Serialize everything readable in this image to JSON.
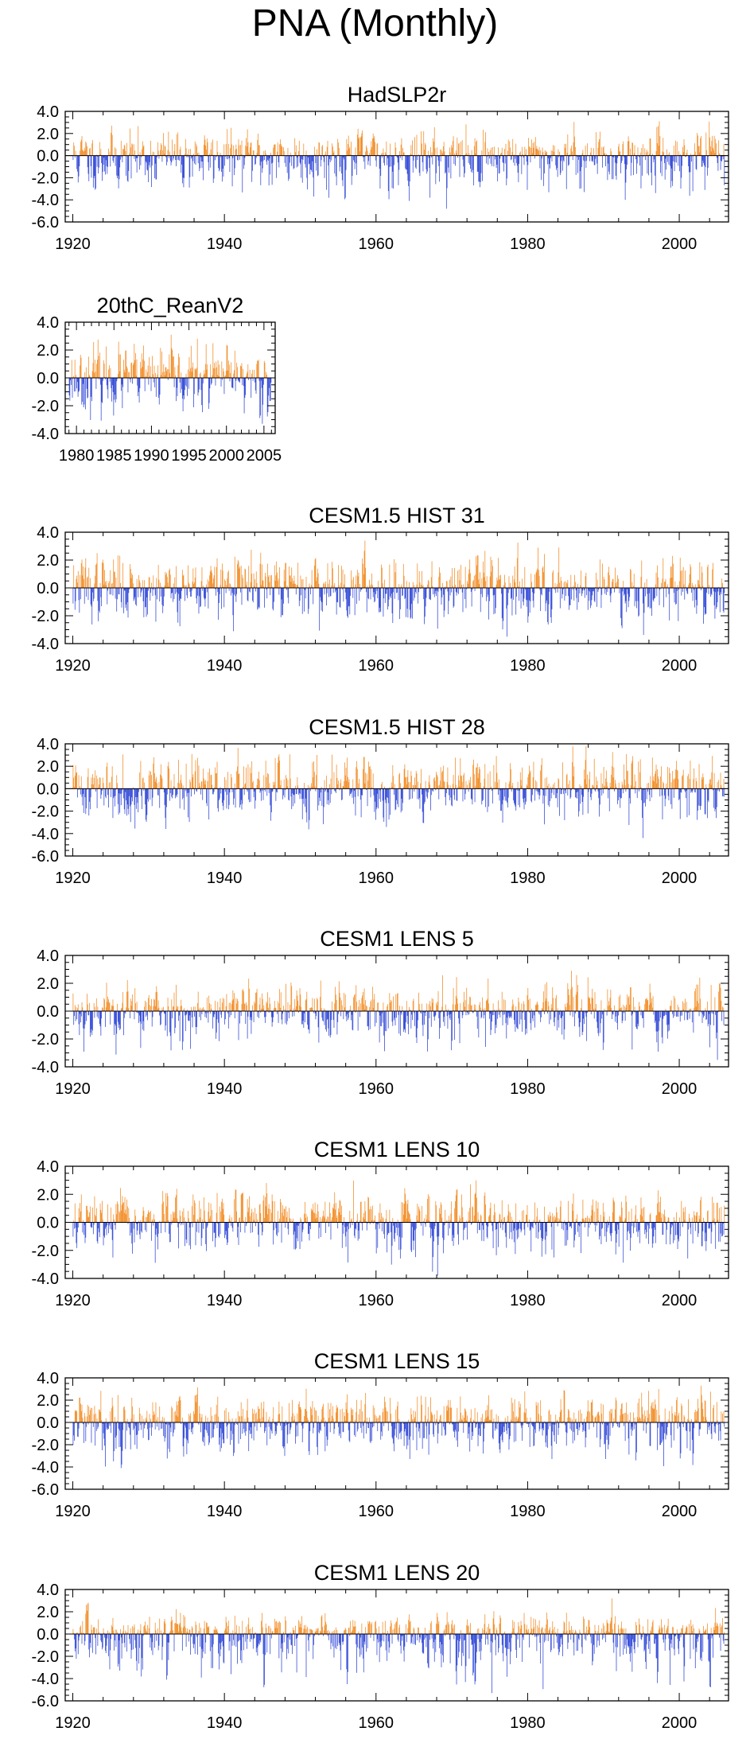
{
  "title": "PNA (Monthly)",
  "colors": {
    "positive": "#f28a21",
    "negative": "#2d45d6",
    "axis": "#000000",
    "zero_line": "#000000"
  },
  "chart_data": [
    {
      "type": "bar",
      "title": "HadSLP2r",
      "x_start": 1920,
      "x_end": 2006,
      "xlim": [
        1919,
        2006.5
      ],
      "xticks": [
        1920,
        1940,
        1960,
        1980,
        2000
      ],
      "xtick_labels": [
        "1920",
        "1940",
        "1960",
        "1980",
        "2000"
      ],
      "ylim": [
        -6,
        4
      ],
      "yticks": [
        4,
        2,
        0,
        -2,
        -4,
        -6
      ],
      "ytick_labels": [
        "4.0",
        "2.0",
        "0.0",
        "-2.0",
        "-4.0",
        "-6.0"
      ],
      "xlabel": "",
      "ylabel": "",
      "series_summary": {
        "max": 3.1,
        "min": -4.8,
        "seed": 11
      }
    },
    {
      "type": "bar",
      "title": "20thC_ReanV2",
      "x_start": 1979,
      "x_end": 2006,
      "xlim": [
        1978.5,
        2006.5
      ],
      "xticks": [
        1980,
        1985,
        1990,
        1995,
        2000,
        2005
      ],
      "xtick_labels": [
        "1980",
        "1985",
        "1990",
        "1995",
        "2000",
        "2005"
      ],
      "ylim": [
        -4,
        4
      ],
      "yticks": [
        4,
        2,
        0,
        -2,
        -4
      ],
      "ytick_labels": [
        "4.0",
        "2.0",
        "0.0",
        "-2.0",
        "-4.0"
      ],
      "xlabel": "",
      "ylabel": "",
      "series_summary": {
        "max": 3.1,
        "min": -3.3,
        "seed": 23
      }
    },
    {
      "type": "bar",
      "title": "CESM1.5 HIST 31",
      "x_start": 1920,
      "x_end": 2006,
      "xlim": [
        1919,
        2006.5
      ],
      "xticks": [
        1920,
        1940,
        1960,
        1980,
        2000
      ],
      "xtick_labels": [
        "1920",
        "1940",
        "1960",
        "1980",
        "2000"
      ],
      "ylim": [
        -4,
        4
      ],
      "yticks": [
        4,
        2,
        0,
        -2,
        -4
      ],
      "ytick_labels": [
        "4.0",
        "2.0",
        "0.0",
        "-2.0",
        "-4.0"
      ],
      "xlabel": "",
      "ylabel": "",
      "series_summary": {
        "max": 3.4,
        "min": -3.5,
        "seed": 37
      }
    },
    {
      "type": "bar",
      "title": "CESM1.5 HIST 28",
      "x_start": 1920,
      "x_end": 2006,
      "xlim": [
        1919,
        2006.5
      ],
      "xticks": [
        1920,
        1940,
        1960,
        1980,
        2000
      ],
      "xtick_labels": [
        "1920",
        "1940",
        "1960",
        "1980",
        "2000"
      ],
      "ylim": [
        -6,
        4
      ],
      "yticks": [
        4,
        2,
        0,
        -2,
        -4,
        -6
      ],
      "ytick_labels": [
        "4.0",
        "2.0",
        "0.0",
        "-2.0",
        "-4.0",
        "-6.0"
      ],
      "xlabel": "",
      "ylabel": "",
      "series_summary": {
        "max": 3.8,
        "min": -4.4,
        "seed": 41
      }
    },
    {
      "type": "bar",
      "title": "CESM1 LENS 5",
      "x_start": 1920,
      "x_end": 2006,
      "xlim": [
        1919,
        2006.5
      ],
      "xticks": [
        1920,
        1940,
        1960,
        1980,
        2000
      ],
      "xtick_labels": [
        "1920",
        "1940",
        "1960",
        "1980",
        "2000"
      ],
      "ylim": [
        -4,
        4
      ],
      "yticks": [
        4,
        2,
        0,
        -2,
        -4
      ],
      "ytick_labels": [
        "4.0",
        "2.0",
        "0.0",
        "-2.0",
        "-4.0"
      ],
      "xlabel": "",
      "ylabel": "",
      "series_summary": {
        "max": 2.9,
        "min": -3.5,
        "seed": 53
      }
    },
    {
      "type": "bar",
      "title": "CESM1 LENS 10",
      "x_start": 1920,
      "x_end": 2006,
      "xlim": [
        1919,
        2006.5
      ],
      "xticks": [
        1920,
        1940,
        1960,
        1980,
        2000
      ],
      "xtick_labels": [
        "1920",
        "1940",
        "1960",
        "1980",
        "2000"
      ],
      "ylim": [
        -4,
        4
      ],
      "yticks": [
        4,
        2,
        0,
        -2,
        -4
      ],
      "ytick_labels": [
        "4.0",
        "2.0",
        "0.0",
        "-2.0",
        "-4.0"
      ],
      "xlabel": "",
      "ylabel": "",
      "series_summary": {
        "max": 3.0,
        "min": -3.8,
        "seed": 67
      }
    },
    {
      "type": "bar",
      "title": "CESM1 LENS 15",
      "x_start": 1920,
      "x_end": 2006,
      "xlim": [
        1919,
        2006.5
      ],
      "xticks": [
        1920,
        1940,
        1960,
        1980,
        2000
      ],
      "xtick_labels": [
        "1920",
        "1940",
        "1960",
        "1980",
        "2000"
      ],
      "ylim": [
        -6,
        4
      ],
      "yticks": [
        4,
        2,
        0,
        -2,
        -4,
        -6
      ],
      "ytick_labels": [
        "4.0",
        "2.0",
        "0.0",
        "-2.0",
        "-4.0",
        "-6.0"
      ],
      "xlabel": "",
      "ylabel": "",
      "series_summary": {
        "max": 3.3,
        "min": -4.1,
        "seed": 79
      }
    },
    {
      "type": "bar",
      "title": "CESM1 LENS 20",
      "x_start": 1920,
      "x_end": 2006,
      "xlim": [
        1919,
        2006.5
      ],
      "xticks": [
        1920,
        1940,
        1960,
        1980,
        2000
      ],
      "xtick_labels": [
        "1920",
        "1940",
        "1960",
        "1980",
        "2000"
      ],
      "ylim": [
        -6,
        4
      ],
      "yticks": [
        4,
        2,
        0,
        -2,
        -4,
        -6
      ],
      "ytick_labels": [
        "4.0",
        "2.0",
        "0.0",
        "-2.0",
        "-4.0",
        "-6.0"
      ],
      "xlabel": "",
      "ylabel": "",
      "series_summary": {
        "max": 3.2,
        "min": -5.3,
        "seed": 83
      }
    }
  ]
}
